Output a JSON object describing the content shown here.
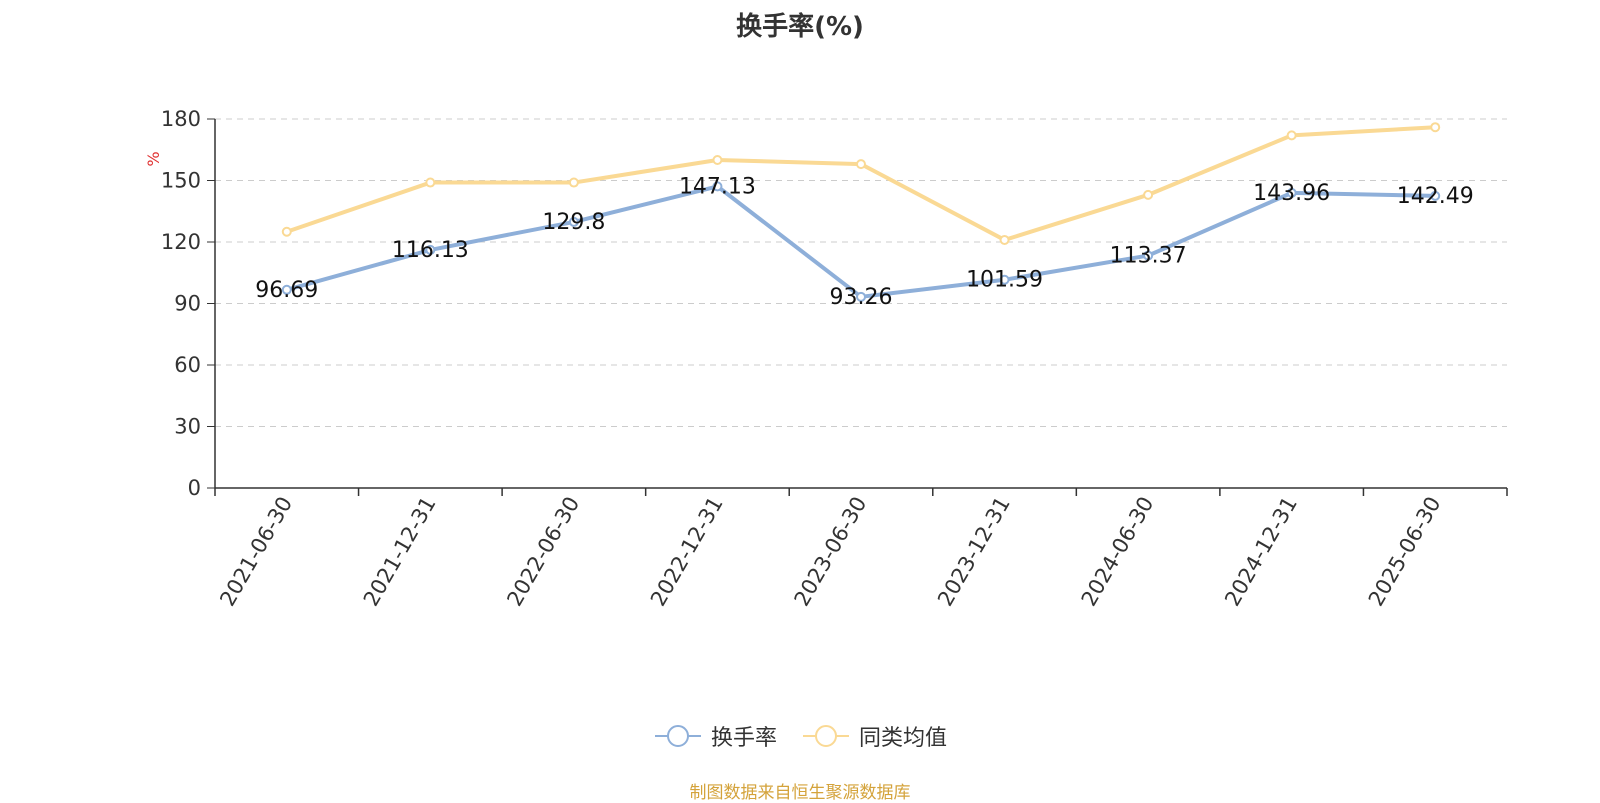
{
  "chart_data": {
    "type": "line",
    "title": "换手率(%)",
    "ylabel": "%",
    "xlabel": "",
    "ylim": [
      0,
      180
    ],
    "yticks": [
      0,
      30,
      60,
      90,
      120,
      150,
      180
    ],
    "grid": true,
    "legend_position": "bottom",
    "categories": [
      "2021-06-30",
      "2021-12-31",
      "2022-06-30",
      "2022-12-31",
      "2023-06-30",
      "2023-12-31",
      "2024-06-30",
      "2024-12-31",
      "2025-06-30"
    ],
    "series": [
      {
        "name": "换手率",
        "color": "#8EAFD9",
        "show_labels": true,
        "values": [
          96.69,
          116.13,
          129.8,
          147.13,
          93.26,
          101.59,
          113.37,
          143.96,
          142.49
        ]
      },
      {
        "name": "同类均值",
        "color": "#FAD994",
        "show_labels": false,
        "values": [
          125,
          149,
          149,
          160,
          158,
          121,
          143,
          172,
          176
        ]
      }
    ]
  },
  "source_text": "制图数据来自恒生聚源数据库",
  "colors": {
    "source": "#D4A33B",
    "ylabel": "#E03030",
    "axis": "#333333",
    "grid": "#CCCCCC"
  }
}
